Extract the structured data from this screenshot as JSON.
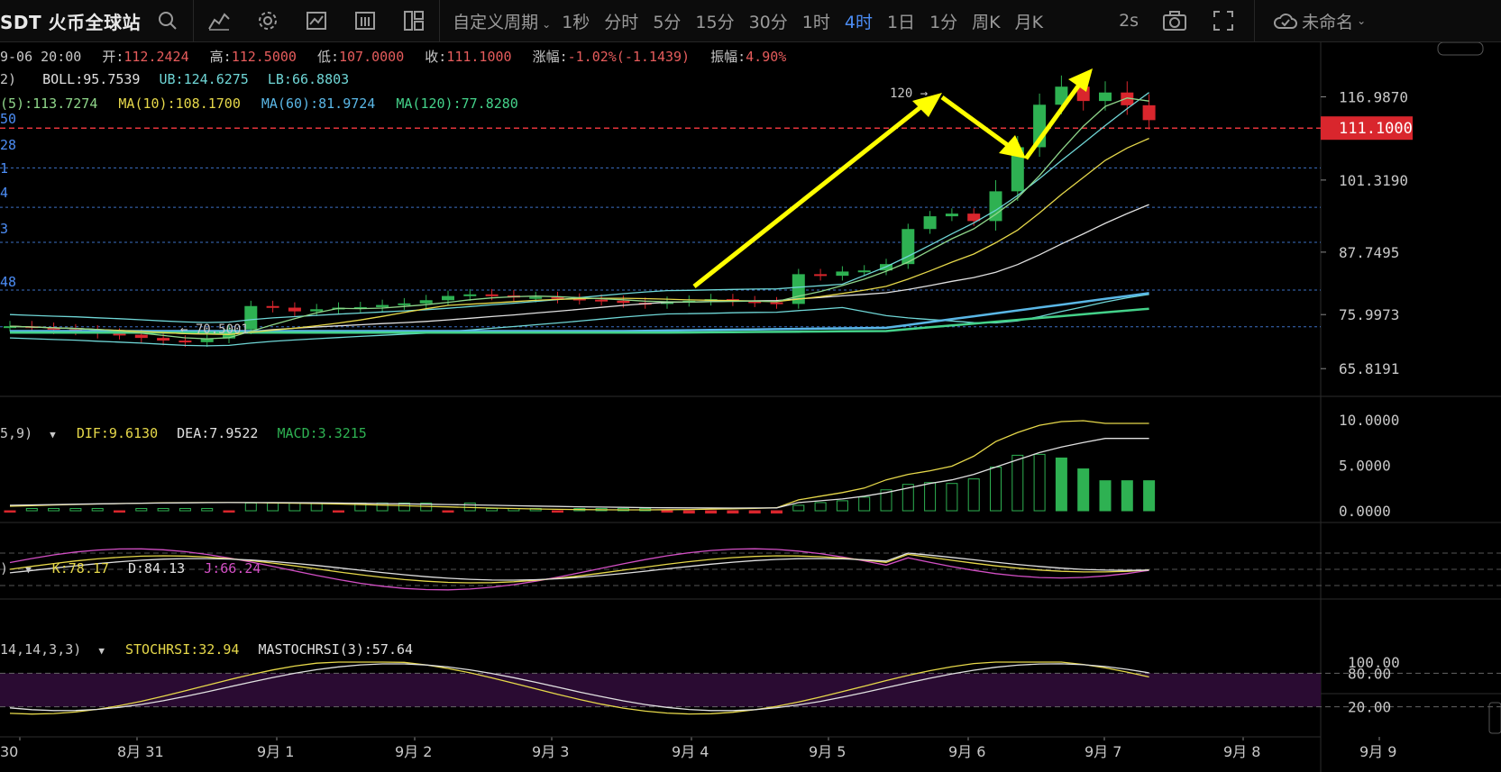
{
  "toolbar": {
    "title": "SDT 火币全球站",
    "custom_period": "自定义周期",
    "periods": [
      "1秒",
      "分时",
      "5分",
      "15分",
      "30分",
      "1时",
      "4时",
      "1日",
      "1分",
      "周K",
      "月K"
    ],
    "active_period": "4时",
    "refresh": "2s",
    "layout_name": "未命名"
  },
  "ohlc": {
    "datetime": "9-06 20:00",
    "open_label": "开:",
    "open": "112.2424",
    "high_label": "高:",
    "high": "112.5000",
    "low_label": "低:",
    "low": "107.0000",
    "close_label": "收:",
    "close": "111.1000",
    "change_label": "涨幅:",
    "change": "-1.02%(-1.1439)",
    "amp_label": "振幅:",
    "amp": "4.90%"
  },
  "boll": {
    "prefix": "2)",
    "boll": "BOLL:95.7539",
    "ub": "UB:124.6275",
    "lb": "LB:66.8803"
  },
  "ma": {
    "ma5": "(5):113.7274",
    "ma10": "MA(10):108.1700",
    "ma60": "MA(60):81.9724",
    "ma120": "MA(120):77.8280"
  },
  "macd": {
    "prefix": "5,9)",
    "dif": "DIF:9.6130",
    "dea": "DEA:7.9522",
    "macd": "MACD:3.3215"
  },
  "kdj": {
    "prefix": ")",
    "k": "K:78.17",
    "d": "D:84.13",
    "j": "J:66.24"
  },
  "stochrsi": {
    "prefix": "14,14,3,3)",
    "stoch": "STOCHRSI:32.94",
    "ma": "MASTOCHRSI(3):57.64"
  },
  "price_axis": [
    "116.9870",
    "101.3190",
    "87.7495",
    "75.9973",
    "65.8191"
  ],
  "current_price": "111.1000",
  "macd_axis": [
    "10.0000",
    "5.0000",
    "0.0000"
  ],
  "stoch_axis": [
    "100.00",
    "80.00",
    "20.00"
  ],
  "left_levels": [
    "50",
    "28",
    "1",
    "4",
    "3",
    "48"
  ],
  "annotations": {
    "high_marker": "120 →",
    "low_marker": "← 70.5001"
  },
  "x_axis": [
    "30",
    "8月 31",
    "9月 1",
    "9月 2",
    "9月 3",
    "9月 4",
    "9月 5",
    "9月 6",
    "9月 7",
    "9月 8",
    "9月 9"
  ],
  "colors": {
    "up": "#2eb152",
    "down": "#d9262d",
    "accent": "#4c8df5",
    "arrow": "#ffff00",
    "ma5": "#6fd6d6",
    "ma10": "#e6d84a",
    "ma60": "#5ab7e6",
    "ma120": "#44d28a"
  }
}
